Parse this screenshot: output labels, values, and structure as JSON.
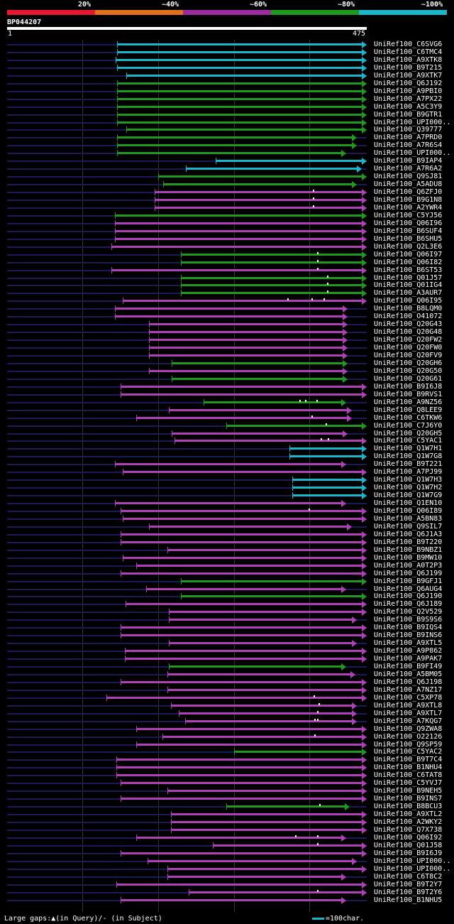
{
  "legend": {
    "segments": [
      {
        "label": "20%",
        "color": "#e8162e"
      },
      {
        "label": "~40%",
        "color": "#e0701a"
      },
      {
        "label": "~60%",
        "color": "#9b2b9f"
      },
      {
        "label": "~80%",
        "color": "#1f9a1f"
      },
      {
        "label": "~100%",
        "color": "#1ab7cc"
      }
    ]
  },
  "query": {
    "id": "BP044207",
    "start": "1",
    "end": "475",
    "length": 475
  },
  "footer": {
    "gaps_text": "Large gaps:▲(in Query)/- (in Subject)",
    "scale_text": "=100char."
  },
  "colors": {
    "cyan": "#1ab7cc",
    "green": "#1f9a1f",
    "purple": "#b040b8"
  },
  "hits": [
    {
      "name": "UniRef100_C6SVG6",
      "color": "cyan",
      "start": 146,
      "end": 475
    },
    {
      "name": "UniRef100_C6TMC4",
      "color": "cyan",
      "start": 146,
      "end": 475
    },
    {
      "name": "UniRef100_A9XTK8",
      "color": "cyan",
      "start": 144,
      "end": 475
    },
    {
      "name": "UniRef100_B9T215",
      "color": "cyan",
      "start": 146,
      "end": 475
    },
    {
      "name": "UniRef100_A9XTK7",
      "color": "cyan",
      "start": 158,
      "end": 475
    },
    {
      "name": "UniRef100_Q6J192",
      "color": "green",
      "start": 146,
      "end": 475
    },
    {
      "name": "UniRef100_A9PBI0",
      "color": "green",
      "start": 146,
      "end": 475
    },
    {
      "name": "UniRef100_A7PX22",
      "color": "green",
      "start": 146,
      "end": 475
    },
    {
      "name": "UniRef100_A5C3Y9",
      "color": "green",
      "start": 146,
      "end": 475
    },
    {
      "name": "UniRef100_B9GTR1",
      "color": "green",
      "start": 146,
      "end": 475
    },
    {
      "name": "UniRef100_UPI000..",
      "color": "green",
      "start": 146,
      "end": 475
    },
    {
      "name": "UniRef100_Q39777",
      "color": "green",
      "start": 158,
      "end": 475
    },
    {
      "name": "UniRef100_A7PRD0",
      "color": "green",
      "start": 146,
      "end": 462
    },
    {
      "name": "UniRef100_A7R6S4",
      "color": "green",
      "start": 146,
      "end": 462
    },
    {
      "name": "UniRef100_UPI000..",
      "color": "green",
      "start": 146,
      "end": 448
    },
    {
      "name": "UniRef100_B9IAP4",
      "color": "cyan",
      "start": 276,
      "end": 475
    },
    {
      "name": "UniRef100_A7R6A2",
      "color": "cyan",
      "start": 237,
      "end": 468
    },
    {
      "name": "UniRef100_Q9SJ81",
      "color": "green",
      "start": 200,
      "end": 475
    },
    {
      "name": "UniRef100_A5ADU8",
      "color": "green",
      "start": 207,
      "end": 462
    },
    {
      "name": "UniRef100_Q6ZFJ0",
      "color": "purple",
      "start": 195,
      "end": 475,
      "gaps": [
        404
      ]
    },
    {
      "name": "UniRef100_B9G1N8",
      "color": "purple",
      "start": 195,
      "end": 475,
      "gaps": [
        404
      ]
    },
    {
      "name": "UniRef100_A2YWR4",
      "color": "purple",
      "start": 195,
      "end": 475,
      "gaps": [
        404
      ]
    },
    {
      "name": "UniRef100_C5YJ56",
      "color": "green",
      "start": 143,
      "end": 475
    },
    {
      "name": "UniRef100_Q06I96",
      "color": "purple",
      "start": 143,
      "end": 475
    },
    {
      "name": "UniRef100_B6SUF4",
      "color": "purple",
      "start": 143,
      "end": 475
    },
    {
      "name": "UniRef100_B6SHU5",
      "color": "purple",
      "start": 143,
      "end": 475
    },
    {
      "name": "UniRef100_Q2L3E6",
      "color": "purple",
      "start": 138,
      "end": 475
    },
    {
      "name": "UniRef100_Q06I97",
      "color": "green",
      "start": 230,
      "end": 475,
      "gaps": [
        410
      ]
    },
    {
      "name": "UniRef100_Q06I82",
      "color": "green",
      "start": 230,
      "end": 475,
      "gaps": [
        410
      ]
    },
    {
      "name": "UniRef100_B6ST53",
      "color": "purple",
      "start": 138,
      "end": 475,
      "gaps": [
        410
      ]
    },
    {
      "name": "UniRef100_Q01J57",
      "color": "green",
      "start": 230,
      "end": 475,
      "gaps": [
        423
      ]
    },
    {
      "name": "UniRef100_Q01IG4",
      "color": "green",
      "start": 230,
      "end": 475,
      "gaps": [
        423
      ]
    },
    {
      "name": "UniRef100_A3AUR7",
      "color": "green",
      "start": 230,
      "end": 475,
      "gaps": [
        423
      ]
    },
    {
      "name": "UniRef100_Q06I95",
      "color": "purple",
      "start": 153,
      "end": 475,
      "gaps": [
        370,
        402,
        418
      ]
    },
    {
      "name": "UniRef100_B8LQM0",
      "color": "purple",
      "start": 143,
      "end": 450
    },
    {
      "name": "UniRef100_O41072",
      "color": "purple",
      "start": 143,
      "end": 450
    },
    {
      "name": "UniRef100_Q20G43",
      "color": "purple",
      "start": 188,
      "end": 450
    },
    {
      "name": "UniRef100_Q20G48",
      "color": "purple",
      "start": 188,
      "end": 450
    },
    {
      "name": "UniRef100_Q20FW2",
      "color": "purple",
      "start": 188,
      "end": 450
    },
    {
      "name": "UniRef100_Q20FW0",
      "color": "purple",
      "start": 188,
      "end": 450
    },
    {
      "name": "UniRef100_Q20FV9",
      "color": "purple",
      "start": 188,
      "end": 450
    },
    {
      "name": "UniRef100_Q20GH6",
      "color": "green",
      "start": 218,
      "end": 450
    },
    {
      "name": "UniRef100_Q20G50",
      "color": "purple",
      "start": 188,
      "end": 450
    },
    {
      "name": "UniRef100_Q20G61",
      "color": "green",
      "start": 218,
      "end": 450
    },
    {
      "name": "UniRef100_B9I6J8",
      "color": "purple",
      "start": 151,
      "end": 475
    },
    {
      "name": "UniRef100_B9RVS1",
      "color": "purple",
      "start": 151,
      "end": 475
    },
    {
      "name": "UniRef100_A9NZ56",
      "color": "green",
      "start": 260,
      "end": 448,
      "gaps": [
        386,
        394,
        409
      ]
    },
    {
      "name": "UniRef100_Q8LEE9",
      "color": "purple",
      "start": 214,
      "end": 455
    },
    {
      "name": "UniRef100_C6TKW6",
      "color": "purple",
      "start": 171,
      "end": 455,
      "gaps": [
        402
      ]
    },
    {
      "name": "UniRef100_C7J6Y0",
      "color": "green",
      "start": 290,
      "end": 475,
      "gaps": [
        421
      ]
    },
    {
      "name": "UniRef100_Q20GH5",
      "color": "purple",
      "start": 218,
      "end": 450
    },
    {
      "name": "UniRef100_C5YAC1",
      "color": "purple",
      "start": 222,
      "end": 475,
      "gaps": [
        414,
        424
      ]
    },
    {
      "name": "UniRef100_Q1W7H1",
      "color": "cyan",
      "start": 373,
      "end": 475
    },
    {
      "name": "UniRef100_Q1W7G8",
      "color": "cyan",
      "start": 373,
      "end": 475
    },
    {
      "name": "UniRef100_B9T221",
      "color": "purple",
      "start": 143,
      "end": 448
    },
    {
      "name": "UniRef100_A7PJ99",
      "color": "purple",
      "start": 153,
      "end": 475
    },
    {
      "name": "UniRef100_Q1W7H3",
      "color": "cyan",
      "start": 377,
      "end": 475
    },
    {
      "name": "UniRef100_Q1W7H2",
      "color": "cyan",
      "start": 377,
      "end": 475
    },
    {
      "name": "UniRef100_Q1W7G9",
      "color": "cyan",
      "start": 377,
      "end": 475
    },
    {
      "name": "UniRef100_Q1EN10",
      "color": "purple",
      "start": 143,
      "end": 448
    },
    {
      "name": "UniRef100_Q06I89",
      "color": "purple",
      "start": 151,
      "end": 475,
      "gaps": [
        398
      ]
    },
    {
      "name": "UniRef100_A5BN83",
      "color": "purple",
      "start": 153,
      "end": 475
    },
    {
      "name": "UniRef100_Q9SIL7",
      "color": "purple",
      "start": 188,
      "end": 455
    },
    {
      "name": "UniRef100_Q6J1A3",
      "color": "purple",
      "start": 151,
      "end": 475
    },
    {
      "name": "UniRef100_B9T220",
      "color": "purple",
      "start": 151,
      "end": 475
    },
    {
      "name": "UniRef100_B9NBZ1",
      "color": "purple",
      "start": 212,
      "end": 475
    },
    {
      "name": "UniRef100_B9MW10",
      "color": "purple",
      "start": 153,
      "end": 475
    },
    {
      "name": "UniRef100_A0T2P3",
      "color": "purple",
      "start": 171,
      "end": 475
    },
    {
      "name": "UniRef100_Q6J199",
      "color": "purple",
      "start": 151,
      "end": 475
    },
    {
      "name": "UniRef100_B9GFJ1",
      "color": "green",
      "start": 230,
      "end": 475
    },
    {
      "name": "UniRef100_Q6AUG4",
      "color": "purple",
      "start": 184,
      "end": 448
    },
    {
      "name": "UniRef100_Q6J190",
      "color": "green",
      "start": 230,
      "end": 475
    },
    {
      "name": "UniRef100_Q6J189",
      "color": "purple",
      "start": 157,
      "end": 475
    },
    {
      "name": "UniRef100_Q2V529",
      "color": "purple",
      "start": 214,
      "end": 475
    },
    {
      "name": "UniRef100_B9S9S6",
      "color": "purple",
      "start": 214,
      "end": 462
    },
    {
      "name": "UniRef100_B9IQS4",
      "color": "purple",
      "start": 151,
      "end": 475
    },
    {
      "name": "UniRef100_B9INS6",
      "color": "purple",
      "start": 151,
      "end": 475
    },
    {
      "name": "UniRef100_A9XTL5",
      "color": "purple",
      "start": 214,
      "end": 462
    },
    {
      "name": "UniRef100_A9P862",
      "color": "purple",
      "start": 156,
      "end": 475
    },
    {
      "name": "UniRef100_A9PAK7",
      "color": "purple",
      "start": 156,
      "end": 475
    },
    {
      "name": "UniRef100_B9FI49",
      "color": "green",
      "start": 214,
      "end": 448
    },
    {
      "name": "UniRef100_A5BM05",
      "color": "purple",
      "start": 212,
      "end": 460
    },
    {
      "name": "UniRef100_Q6J198",
      "color": "purple",
      "start": 151,
      "end": 475
    },
    {
      "name": "UniRef100_A7NZ17",
      "color": "purple",
      "start": 212,
      "end": 475
    },
    {
      "name": "UniRef100_C5XP78",
      "color": "purple",
      "start": 132,
      "end": 475,
      "gaps": [
        405
      ]
    },
    {
      "name": "UniRef100_A9XTL8",
      "color": "purple",
      "start": 217,
      "end": 462,
      "gaps": [
        411
      ]
    },
    {
      "name": "UniRef100_A9XTL7",
      "color": "purple",
      "start": 227,
      "end": 462,
      "gaps": [
        410
      ]
    },
    {
      "name": "UniRef100_A7KQG7",
      "color": "purple",
      "start": 236,
      "end": 462,
      "gaps": [
        406,
        410
      ]
    },
    {
      "name": "UniRef100_Q9ZWA8",
      "color": "purple",
      "start": 171,
      "end": 475
    },
    {
      "name": "UniRef100_O22126",
      "color": "purple",
      "start": 206,
      "end": 475,
      "gaps": [
        406
      ]
    },
    {
      "name": "UniRef100_Q9SP59",
      "color": "purple",
      "start": 171,
      "end": 475
    },
    {
      "name": "UniRef100_C5YAC2",
      "color": "green",
      "start": 300,
      "end": 475
    },
    {
      "name": "UniRef100_B9T7C4",
      "color": "purple",
      "start": 145,
      "end": 475
    },
    {
      "name": "UniRef100_B1NHU4",
      "color": "purple",
      "start": 145,
      "end": 475
    },
    {
      "name": "UniRef100_C6TAT8",
      "color": "purple",
      "start": 145,
      "end": 475
    },
    {
      "name": "UniRef100_C5YVJ7",
      "color": "purple",
      "start": 151,
      "end": 475
    },
    {
      "name": "UniRef100_B9NEH5",
      "color": "purple",
      "start": 212,
      "end": 475
    },
    {
      "name": "UniRef100_B9INS7",
      "color": "purple",
      "start": 151,
      "end": 475
    },
    {
      "name": "UniRef100_B8BCU3",
      "color": "green",
      "start": 290,
      "end": 453,
      "gaps": [
        412
      ]
    },
    {
      "name": "UniRef100_A9XTL2",
      "color": "purple",
      "start": 217,
      "end": 475
    },
    {
      "name": "UniRef100_A2WKY2",
      "color": "purple",
      "start": 217,
      "end": 475
    },
    {
      "name": "UniRef100_Q7X738",
      "color": "purple",
      "start": 217,
      "end": 475
    },
    {
      "name": "UniRef100_Q06I92",
      "color": "purple",
      "start": 171,
      "end": 448,
      "gaps": [
        381,
        410
      ]
    },
    {
      "name": "UniRef100_Q01J58",
      "color": "purple",
      "start": 272,
      "end": 475,
      "gaps": [
        410
      ]
    },
    {
      "name": "UniRef100_B9I6J9",
      "color": "purple",
      "start": 151,
      "end": 475
    },
    {
      "name": "UniRef100_UPI000..",
      "color": "purple",
      "start": 186,
      "end": 462
    },
    {
      "name": "UniRef100_UPI000..",
      "color": "purple",
      "start": 212,
      "end": 475
    },
    {
      "name": "UniRef100_C6T8C2",
      "color": "purple",
      "start": 212,
      "end": 448
    },
    {
      "name": "UniRef100_B9T2Y7",
      "color": "purple",
      "start": 145,
      "end": 475
    },
    {
      "name": "UniRef100_B9T2Y6",
      "color": "purple",
      "start": 240,
      "end": 475,
      "gaps": [
        410
      ]
    },
    {
      "name": "UniRef100_B1NHU5",
      "color": "purple",
      "start": 151,
      "end": 448
    }
  ]
}
